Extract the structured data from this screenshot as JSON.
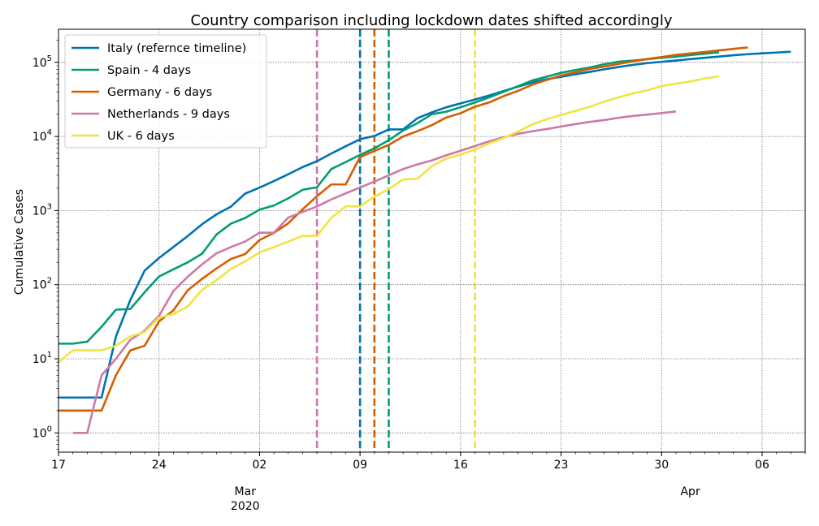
{
  "chart_data": {
    "type": "line",
    "title": "Country comparison including lockdown dates shifted accordingly",
    "ylabel": "Cumulative Cases",
    "xlabel": "",
    "yscale": "log",
    "ylim": [
      0.55,
      280000
    ],
    "xlim": [
      "2020-02-17",
      "2020-04-09"
    ],
    "grid": true,
    "legend_position": "upper-left",
    "x_ticks": [
      {
        "date": "2020-02-17",
        "label": "17"
      },
      {
        "date": "2020-02-24",
        "label": "24"
      },
      {
        "date": "2020-03-02",
        "label": "02"
      },
      {
        "date": "2020-03-09",
        "label": "09"
      },
      {
        "date": "2020-03-16",
        "label": "16"
      },
      {
        "date": "2020-03-23",
        "label": "23"
      },
      {
        "date": "2020-03-30",
        "label": "30"
      },
      {
        "date": "2020-04-06",
        "label": "06"
      }
    ],
    "x_month_labels": [
      {
        "date": "2020-03-01",
        "label": "Mar",
        "sublabel": "2020"
      },
      {
        "date": "2020-04-01",
        "label": "Apr",
        "sublabel": ""
      }
    ],
    "y_ticks": [
      {
        "value": 1,
        "base": "10",
        "exp": "0"
      },
      {
        "value": 10,
        "base": "10",
        "exp": "1"
      },
      {
        "value": 100,
        "base": "10",
        "exp": "2"
      },
      {
        "value": 1000,
        "base": "10",
        "exp": "3"
      },
      {
        "value": 10000,
        "base": "10",
        "exp": "4"
      },
      {
        "value": 100000,
        "base": "10",
        "exp": "5"
      }
    ],
    "series": [
      {
        "name": "Italy (refernce timeline)",
        "color": "#0072b2",
        "x": [
          "2020-02-17",
          "2020-02-18",
          "2020-02-19",
          "2020-02-20",
          "2020-02-21",
          "2020-02-22",
          "2020-02-23",
          "2020-02-24",
          "2020-02-25",
          "2020-02-26",
          "2020-02-27",
          "2020-02-28",
          "2020-02-29",
          "2020-03-01",
          "2020-03-02",
          "2020-03-03",
          "2020-03-04",
          "2020-03-05",
          "2020-03-06",
          "2020-03-07",
          "2020-03-08",
          "2020-03-09",
          "2020-03-10",
          "2020-03-11",
          "2020-03-12",
          "2020-03-13",
          "2020-03-14",
          "2020-03-15",
          "2020-03-16",
          "2020-03-17",
          "2020-03-18",
          "2020-03-19",
          "2020-03-20",
          "2020-03-21",
          "2020-03-22",
          "2020-03-23",
          "2020-03-24",
          "2020-03-25",
          "2020-03-26",
          "2020-03-27",
          "2020-03-28",
          "2020-03-29",
          "2020-03-30",
          "2020-03-31",
          "2020-04-01",
          "2020-04-02",
          "2020-04-03",
          "2020-04-04",
          "2020-04-05",
          "2020-04-06",
          "2020-04-07",
          "2020-04-08"
        ],
        "y": [
          3,
          3,
          3,
          3,
          20,
          62,
          155,
          229,
          322,
          453,
          655,
          888,
          1128,
          1694,
          2036,
          2502,
          3089,
          3858,
          4636,
          5883,
          7375,
          9172,
          10149,
          12462,
          12462,
          17660,
          21157,
          24747,
          27980,
          31506,
          35713,
          41035,
          47021,
          53578,
          59138,
          63927,
          69176,
          74386,
          80589,
          86498,
          92472,
          97689,
          101739,
          105792,
          110574,
          115242,
          119827,
          124632,
          128948,
          132547,
          135586,
          139422
        ]
      },
      {
        "name": "Spain - 4 days",
        "color": "#009e73",
        "x": [
          "2020-02-17",
          "2020-02-18",
          "2020-02-19",
          "2020-02-20",
          "2020-02-21",
          "2020-02-22",
          "2020-02-23",
          "2020-02-24",
          "2020-02-25",
          "2020-02-26",
          "2020-02-27",
          "2020-02-28",
          "2020-02-29",
          "2020-03-01",
          "2020-03-02",
          "2020-03-03",
          "2020-03-04",
          "2020-03-05",
          "2020-03-06",
          "2020-03-07",
          "2020-03-08",
          "2020-03-09",
          "2020-03-10",
          "2020-03-11",
          "2020-03-12",
          "2020-03-13",
          "2020-03-14",
          "2020-03-15",
          "2020-03-16",
          "2020-03-17",
          "2020-03-18",
          "2020-03-19",
          "2020-03-20",
          "2020-03-21",
          "2020-03-22",
          "2020-03-23",
          "2020-03-24",
          "2020-03-25",
          "2020-03-26",
          "2020-03-27",
          "2020-03-28",
          "2020-03-29",
          "2020-03-30",
          "2020-03-31",
          "2020-04-01",
          "2020-04-02",
          "2020-04-03"
        ],
        "y": [
          16,
          16,
          17,
          27,
          46,
          47,
          79,
          129,
          161,
          200,
          262,
          475,
          665,
          795,
          1029,
          1172,
          1461,
          1905,
          2067,
          3641,
          4516,
          5637,
          6922,
          8913,
          12022,
          15147,
          19980,
          21571,
          24785,
          28740,
          33750,
          40140,
          47710,
          57080,
          64060,
          72280,
          78800,
          85200,
          94400,
          102100,
          105700,
          110300,
          115400,
          119200,
          125400,
          130700,
          136700
        ]
      },
      {
        "name": "Germany - 6 days",
        "color": "#d55e00",
        "x": [
          "2020-02-17",
          "2020-02-18",
          "2020-02-19",
          "2020-02-20",
          "2020-02-21",
          "2020-02-22",
          "2020-02-23",
          "2020-02-24",
          "2020-02-25",
          "2020-02-26",
          "2020-02-27",
          "2020-02-28",
          "2020-02-29",
          "2020-03-01",
          "2020-03-02",
          "2020-03-03",
          "2020-03-04",
          "2020-03-05",
          "2020-03-06",
          "2020-03-07",
          "2020-03-08",
          "2020-03-09",
          "2020-03-10",
          "2020-03-11",
          "2020-03-12",
          "2020-03-13",
          "2020-03-14",
          "2020-03-15",
          "2020-03-16",
          "2020-03-17",
          "2020-03-18",
          "2020-03-19",
          "2020-03-20",
          "2020-03-21",
          "2020-03-22",
          "2020-03-23",
          "2020-03-24",
          "2020-03-25",
          "2020-03-26",
          "2020-03-27",
          "2020-03-28",
          "2020-03-29",
          "2020-03-30",
          "2020-03-31",
          "2020-04-01",
          "2020-04-02",
          "2020-04-03",
          "2020-04-04",
          "2020-04-05"
        ],
        "y": [
          2,
          2,
          2,
          2,
          6,
          13,
          15,
          32,
          45,
          84,
          120,
          165,
          222,
          259,
          400,
          500,
          673,
          1040,
          1565,
          2250,
          2250,
          5270,
          6380,
          7700,
          10000,
          11800,
          14200,
          18000,
          20600,
          25200,
          28800,
          35000,
          41200,
          50000,
          57800,
          66500,
          73600,
          81300,
          87900,
          95400,
          103000,
          111000,
          118000,
          126000,
          132000,
          138000,
          145000,
          152000,
          159000
        ]
      },
      {
        "name": "Netherlands - 9 days",
        "color": "#cc79a7",
        "x": [
          "2020-02-18",
          "2020-02-19",
          "2020-02-20",
          "2020-02-21",
          "2020-02-22",
          "2020-02-23",
          "2020-02-24",
          "2020-02-25",
          "2020-02-26",
          "2020-02-27",
          "2020-02-28",
          "2020-02-29",
          "2020-03-01",
          "2020-03-02",
          "2020-03-03",
          "2020-03-04",
          "2020-03-05",
          "2020-03-06",
          "2020-03-07",
          "2020-03-08",
          "2020-03-09",
          "2020-03-10",
          "2020-03-11",
          "2020-03-12",
          "2020-03-13",
          "2020-03-14",
          "2020-03-15",
          "2020-03-16",
          "2020-03-17",
          "2020-03-18",
          "2020-03-19",
          "2020-03-20",
          "2020-03-21",
          "2020-03-22",
          "2020-03-23",
          "2020-03-24",
          "2020-03-25",
          "2020-03-26",
          "2020-03-27",
          "2020-03-28",
          "2020-03-29",
          "2020-03-30",
          "2020-03-31"
        ],
        "y": [
          1,
          1,
          6,
          10,
          18,
          24,
          38,
          82,
          128,
          188,
          265,
          321,
          382,
          503,
          503,
          804,
          959,
          1135,
          1413,
          1705,
          2051,
          2460,
          2994,
          3631,
          4204,
          4749,
          5560,
          6412,
          7431,
          8603,
          9762,
          10866,
          11750,
          12595,
          13614,
          14697,
          15723,
          16627,
          17851,
          18926,
          19709,
          20682,
          21762
        ]
      },
      {
        "name": "UK - 6 days",
        "color": "#f0e442",
        "x": [
          "2020-02-17",
          "2020-02-18",
          "2020-02-19",
          "2020-02-20",
          "2020-02-21",
          "2020-02-22",
          "2020-02-23",
          "2020-02-24",
          "2020-02-25",
          "2020-02-26",
          "2020-02-27",
          "2020-02-28",
          "2020-02-29",
          "2020-03-01",
          "2020-03-02",
          "2020-03-03",
          "2020-03-04",
          "2020-03-05",
          "2020-03-06",
          "2020-03-07",
          "2020-03-08",
          "2020-03-09",
          "2020-03-10",
          "2020-03-11",
          "2020-03-12",
          "2020-03-13",
          "2020-03-14",
          "2020-03-15",
          "2020-03-16",
          "2020-03-17",
          "2020-03-18",
          "2020-03-19",
          "2020-03-20",
          "2020-03-21",
          "2020-03-22",
          "2020-03-23",
          "2020-03-24",
          "2020-03-25",
          "2020-03-26",
          "2020-03-27",
          "2020-03-28",
          "2020-03-29",
          "2020-03-30",
          "2020-03-31",
          "2020-04-01",
          "2020-04-02",
          "2020-04-03"
        ],
        "y": [
          9,
          13,
          13,
          13,
          15,
          20,
          23,
          36,
          40,
          51,
          85,
          115,
          163,
          206,
          273,
          321,
          382,
          456,
          456,
          798,
          1140,
          1140,
          1543,
          1950,
          2626,
          2689,
          3983,
          5018,
          5683,
          6650,
          8077,
          9529,
          11658,
          14543,
          17089,
          19522,
          22141,
          25150,
          29474,
          33718,
          38168,
          41903,
          47806,
          51608,
          55242,
          60733,
          65077
        ]
      }
    ],
    "vlines": [
      {
        "date": "2020-03-06",
        "color": "#cc79a7"
      },
      {
        "date": "2020-03-09",
        "color": "#0072b2"
      },
      {
        "date": "2020-03-10",
        "color": "#d55e00"
      },
      {
        "date": "2020-03-11",
        "color": "#009e73"
      },
      {
        "date": "2020-03-17",
        "color": "#f0e442"
      }
    ]
  }
}
